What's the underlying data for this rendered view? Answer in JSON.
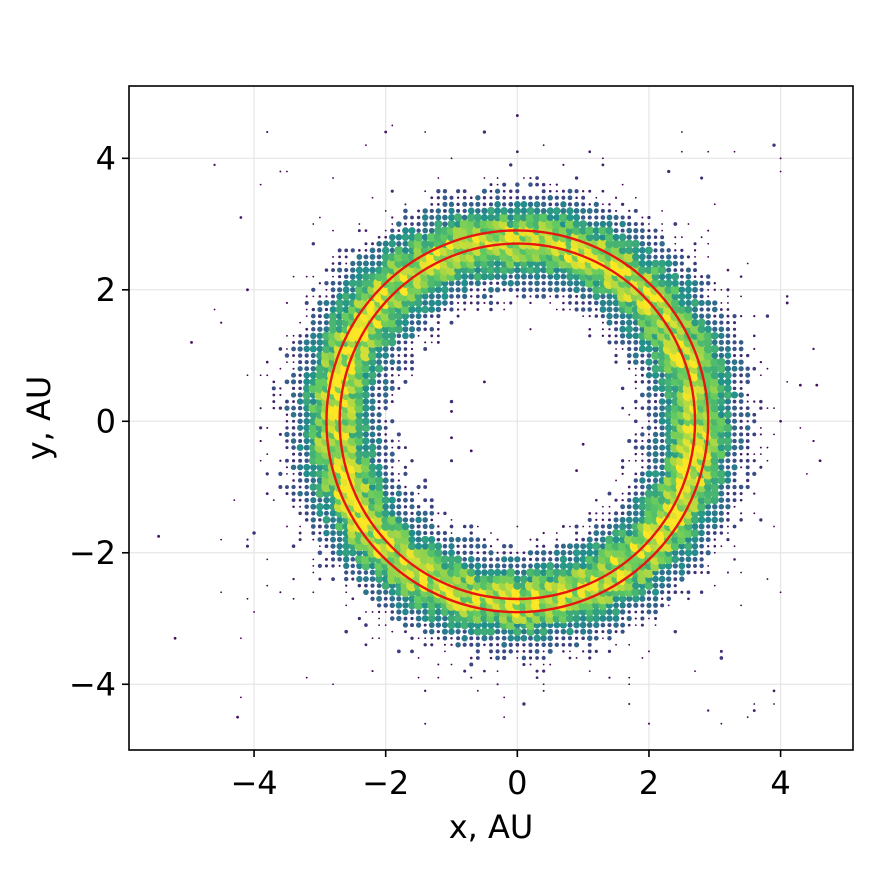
{
  "chart_data": {
    "type": "scatter",
    "title": "",
    "xlabel": "x, AU",
    "ylabel": "y, AU",
    "xlim": [
      -5.9,
      5.1
    ],
    "ylim": [
      -5.0,
      5.1
    ],
    "xticks": [
      -4,
      -2,
      0,
      2,
      4
    ],
    "yticks": [
      -4,
      -2,
      0,
      2,
      4
    ],
    "xtick_labels": [
      "−4",
      "−2",
      "0",
      "2",
      "4"
    ],
    "ytick_labels": [
      "−4",
      "−2",
      "0",
      "2",
      "4"
    ],
    "grid": true,
    "legend": "none",
    "colormap": "viridis",
    "colormap_stops": [
      "#440154",
      "#3b528b",
      "#21918c",
      "#5ec962",
      "#fde725"
    ],
    "density_ring": {
      "center": [
        0,
        0
      ],
      "inner_edge_radius": 1.8,
      "outer_edge_radius": 4.0,
      "peak_radius": 2.75,
      "grid_spacing": 0.1
    },
    "stray_points": [
      [
        -5.45,
        -1.75
      ],
      [
        -5.2,
        -3.3
      ],
      [
        -4.25,
        -4.5
      ],
      [
        -4.95,
        1.2
      ],
      [
        4.55,
        0.55
      ],
      [
        4.6,
        -0.6
      ],
      [
        4.3,
        0.55
      ],
      [
        -1.0,
        -0.25
      ],
      [
        -1.0,
        0.15
      ],
      [
        1.0,
        -0.35
      ],
      [
        0.9,
        -0.75
      ],
      [
        -0.7,
        -0.45
      ],
      [
        -1.2,
        1.2
      ],
      [
        -0.5,
        0.6
      ],
      [
        0.0,
        4.65
      ],
      [
        -2.0,
        4.4
      ],
      [
        -4.1,
        2.0
      ],
      [
        4.1,
        1.8
      ]
    ],
    "circles": [
      {
        "center": [
          0,
          0
        ],
        "radius": 2.9,
        "color": "#e8150f"
      },
      {
        "center": [
          0,
          0
        ],
        "radius": 2.7,
        "color": "#e8150f"
      }
    ],
    "axes_color": "#000000",
    "grid_color": "#e6e6e6"
  }
}
